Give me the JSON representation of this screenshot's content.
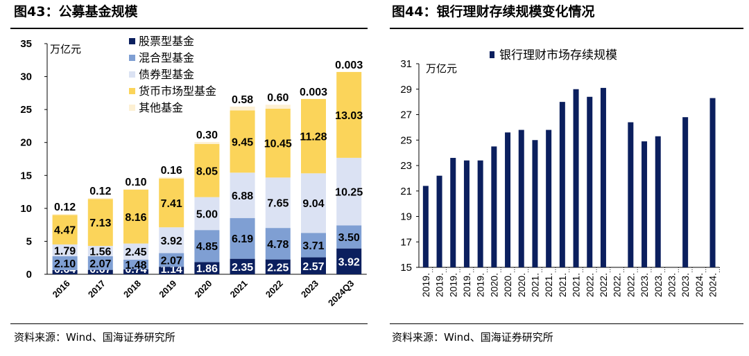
{
  "left": {
    "title": "图43：公募基金规模",
    "source": "资料来源：Wind、国海证券研究所"
  },
  "right": {
    "title": "图44：银行理财存续规模变化情况",
    "source": "资料来源：Wind、国海证券研究所"
  },
  "chart_data": [
    {
      "type": "bar",
      "stacked": true,
      "unit_label": "万亿元",
      "ylim": [
        0,
        35
      ],
      "yticks": [
        0,
        5,
        10,
        15,
        20,
        25,
        30,
        35
      ],
      "categories": [
        "2016",
        "2017",
        "2018",
        "2019",
        "2020",
        "2021",
        "2022",
        "2023",
        "2024Q3"
      ],
      "legend_position": "top-left",
      "series": [
        {
          "name": "股票型基金",
          "color": "#0b1f5e",
          "values": [
            0.64,
            0.67,
            0.74,
            1.14,
            1.86,
            2.35,
            2.25,
            2.57,
            3.92
          ]
        },
        {
          "name": "混合型基金",
          "color": "#7f9fd3",
          "values": [
            2.1,
            2.07,
            1.48,
            2.07,
            4.85,
            6.19,
            4.78,
            3.71,
            3.5
          ]
        },
        {
          "name": "债券型基金",
          "color": "#dbe2f3",
          "values": [
            1.79,
            1.56,
            2.45,
            3.92,
            5.0,
            6.88,
            7.65,
            9.04,
            10.25
          ]
        },
        {
          "name": "货币市场型基金",
          "color": "#fbd45a",
          "values": [
            4.47,
            7.13,
            8.16,
            7.41,
            8.05,
            9.45,
            10.45,
            11.28,
            13.03
          ]
        },
        {
          "name": "其他基金",
          "color": "#fdf0d3",
          "values": [
            0.12,
            0.12,
            0.1,
            0.16,
            0.3,
            0.58,
            0.6,
            0.003,
            0.003
          ]
        }
      ],
      "labels": [
        [
          "0.64",
          "0.67",
          "0.74",
          "1.14",
          "1.86",
          "2.35",
          "2.25",
          "2.57",
          "3.92"
        ],
        [
          "2.10",
          "2.07",
          "1.48",
          "2.07",
          "4.85",
          "6.19",
          "4.78",
          "3.71",
          "3.50"
        ],
        [
          "1.79",
          "1.56",
          "2.45",
          "3.92",
          "5.00",
          "6.88",
          "7.65",
          "9.04",
          "10.25"
        ],
        [
          "4.47",
          "7.13",
          "8.16",
          "7.41",
          "8.05",
          "9.45",
          "10.45",
          "11.28",
          "13.03"
        ],
        [
          "0.12",
          "0.12",
          "0.10",
          "0.16",
          "0.30",
          "0.58",
          "0.60",
          "0.003",
          "0.003"
        ]
      ]
    },
    {
      "type": "bar",
      "unit_label": "万亿元",
      "ylim": [
        15,
        31
      ],
      "yticks": [
        15,
        17,
        19,
        21,
        23,
        25,
        27,
        29,
        31
      ],
      "legend_position": "top",
      "series": [
        {
          "name": "银行理财市场存续规模",
          "color": "#0b1f5e"
        }
      ],
      "categories": [
        "2019.",
        "2019.",
        "2019.",
        "2019.",
        "2019.",
        "2020.",
        "2020.",
        "2020.",
        "2021.",
        "2021.",
        "2021.",
        "2021.",
        "2022.",
        "2022.",
        "2022.",
        "2022.",
        "2023.",
        "2023.",
        "2023.",
        "2023.",
        "2024.",
        "2024."
      ],
      "values": [
        21.4,
        22.2,
        23.6,
        23.4,
        23.4,
        24.5,
        25.6,
        25.8,
        25.0,
        25.8,
        28.0,
        29.0,
        28.4,
        29.1,
        null,
        26.4,
        24.9,
        25.3,
        null,
        26.8,
        null,
        28.3
      ]
    }
  ]
}
